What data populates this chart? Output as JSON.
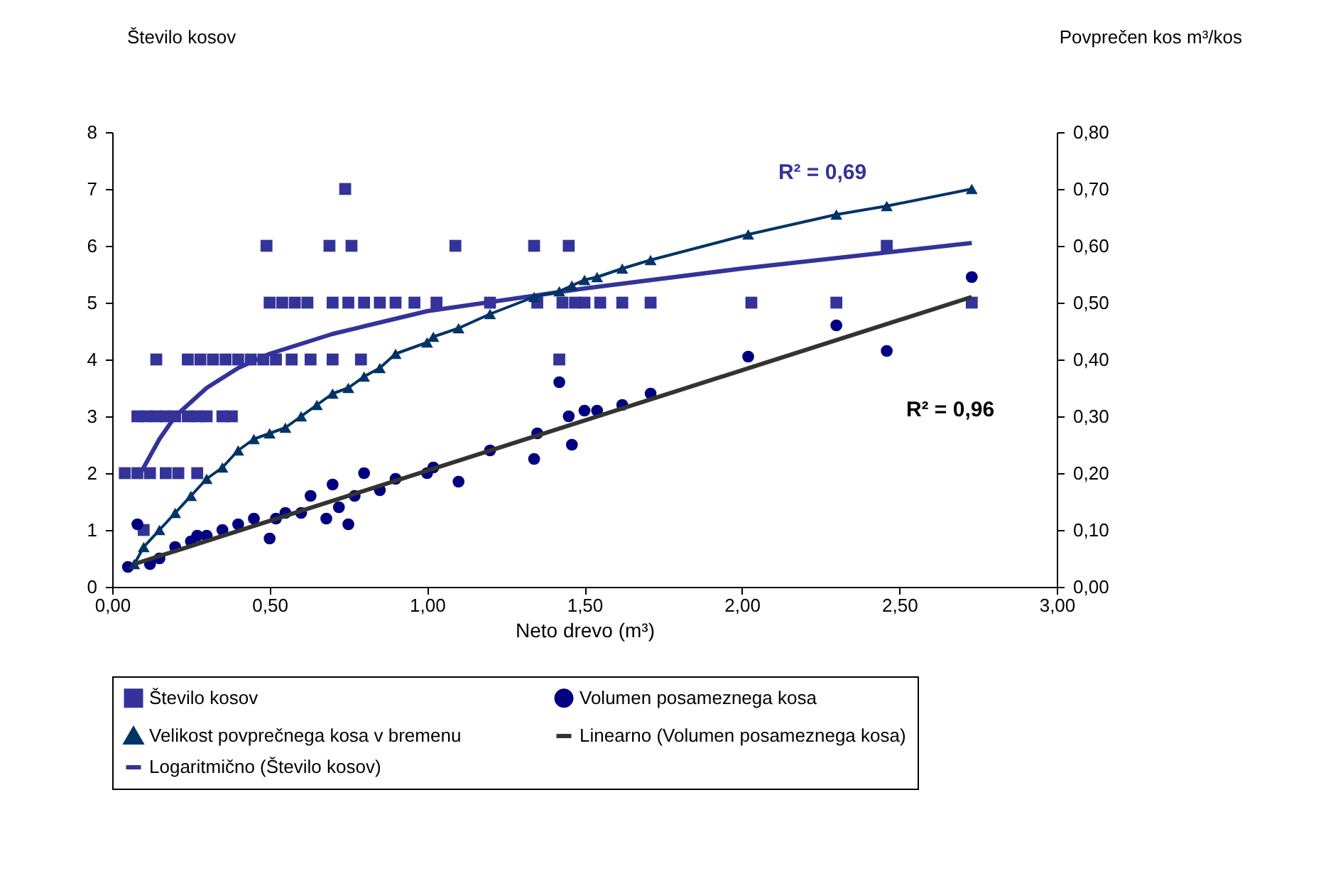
{
  "chart_data": {
    "type": "scatter",
    "xlabel": "Neto drevo (m³)",
    "ylabel": "Število kosov",
    "y2label": "Povprečen kos m³/kos",
    "xlim": [
      0,
      3
    ],
    "xticks": [
      {
        "value": 0,
        "label": "0,00"
      },
      {
        "value": 0.5,
        "label": "0,50"
      },
      {
        "value": 1,
        "label": "1,00"
      },
      {
        "value": 1.5,
        "label": "1,50"
      },
      {
        "value": 2,
        "label": "2,00"
      },
      {
        "value": 2.5,
        "label": "2,50"
      },
      {
        "value": 3,
        "label": "3,00"
      }
    ],
    "ylim": [
      0,
      8
    ],
    "yticks": [
      0,
      1,
      2,
      3,
      4,
      5,
      6,
      7,
      8
    ],
    "y2lim": [
      0,
      0.8
    ],
    "y2ticks": [
      {
        "value": 0,
        "label": "0,00"
      },
      {
        "value": 0.1,
        "label": "0,10"
      },
      {
        "value": 0.2,
        "label": "0,20"
      },
      {
        "value": 0.3,
        "label": "0,30"
      },
      {
        "value": 0.4,
        "label": "0,40"
      },
      {
        "value": 0.5,
        "label": "0,50"
      },
      {
        "value": 0.6,
        "label": "0,60"
      },
      {
        "value": 0.7,
        "label": "0,70"
      },
      {
        "value": 0.8,
        "label": "0,80"
      }
    ],
    "grid": false,
    "legend": "bottom",
    "annotations": [
      "R² = 0,69",
      "R² = 0,96"
    ],
    "series": [
      {
        "name": "Število kosov",
        "marker": "square",
        "color": "#333399",
        "x": [
          0.04,
          0.08,
          0.12,
          0.17,
          0.21,
          0.27,
          0.1,
          0.08,
          0.11,
          0.14,
          0.17,
          0.2,
          0.24,
          0.27,
          0.3,
          0.35,
          0.38,
          0.14,
          0.24,
          0.28,
          0.32,
          0.36,
          0.4,
          0.44,
          0.48,
          0.52,
          0.57,
          0.63,
          0.7,
          0.79,
          1.42,
          0.5,
          0.54,
          0.58,
          0.62,
          0.7,
          0.75,
          0.8,
          0.85,
          0.9,
          0.96,
          1.03,
          1.2,
          1.35,
          1.43,
          1.47,
          1.5,
          1.55,
          1.62,
          1.71,
          2.03,
          2.3,
          2.73,
          0.49,
          0.69,
          0.76,
          1.09,
          1.34,
          1.45,
          2.46,
          0.74
        ],
        "values": [
          2,
          2,
          2,
          2,
          2,
          2,
          1,
          3,
          3,
          3,
          3,
          3,
          3,
          3,
          3,
          3,
          3,
          4,
          4,
          4,
          4,
          4,
          4,
          4,
          4,
          4,
          4,
          4,
          4,
          4,
          4,
          5,
          5,
          5,
          5,
          5,
          5,
          5,
          5,
          5,
          5,
          5,
          5,
          5,
          5,
          5,
          5,
          5,
          5,
          5,
          5,
          5,
          5,
          6,
          6,
          6,
          6,
          6,
          6,
          6,
          7
        ]
      },
      {
        "name": "Volumen posameznega kosa",
        "marker": "circle",
        "axis": "y2",
        "color": "#000080",
        "x": [
          0.05,
          0.08,
          0.12,
          0.15,
          0.2,
          0.25,
          0.27,
          0.3,
          0.35,
          0.4,
          0.45,
          0.5,
          0.52,
          0.55,
          0.6,
          0.63,
          0.68,
          0.7,
          0.72,
          0.75,
          0.77,
          0.8,
          0.85,
          0.9,
          1.0,
          1.02,
          1.1,
          1.2,
          1.34,
          1.35,
          1.42,
          1.45,
          1.46,
          1.5,
          1.54,
          1.62,
          1.71,
          2.02,
          2.3,
          2.46,
          2.73
        ],
        "values": [
          0.035,
          0.11,
          0.04,
          0.05,
          0.07,
          0.08,
          0.09,
          0.09,
          0.1,
          0.11,
          0.12,
          0.085,
          0.12,
          0.13,
          0.13,
          0.16,
          0.12,
          0.18,
          0.14,
          0.11,
          0.16,
          0.2,
          0.17,
          0.19,
          0.2,
          0.21,
          0.185,
          0.24,
          0.225,
          0.27,
          0.36,
          0.3,
          0.25,
          0.31,
          0.31,
          0.32,
          0.34,
          0.405,
          0.46,
          0.415,
          0.545
        ]
      },
      {
        "name": "Velikost povprečnega kosa v bremenu",
        "type": "line",
        "marker": "triangle",
        "axis": "y2",
        "color": "#003366",
        "x": [
          0.07,
          0.1,
          0.15,
          0.2,
          0.25,
          0.3,
          0.35,
          0.4,
          0.45,
          0.5,
          0.55,
          0.6,
          0.65,
          0.7,
          0.75,
          0.8,
          0.85,
          0.9,
          1.0,
          1.02,
          1.1,
          1.2,
          1.34,
          1.42,
          1.46,
          1.5,
          1.54,
          1.62,
          1.71,
          2.02,
          2.3,
          2.46,
          2.73
        ],
        "values": [
          0.04,
          0.07,
          0.1,
          0.13,
          0.16,
          0.19,
          0.21,
          0.24,
          0.26,
          0.27,
          0.28,
          0.3,
          0.32,
          0.34,
          0.35,
          0.37,
          0.385,
          0.41,
          0.43,
          0.44,
          0.455,
          0.48,
          0.51,
          0.52,
          0.53,
          0.54,
          0.545,
          0.56,
          0.575,
          0.62,
          0.655,
          0.67,
          0.7
        ]
      },
      {
        "name": "Linearno (Volumen posameznega kosa)",
        "type": "line",
        "marker": "none",
        "axis": "y2",
        "color": "#333333",
        "x": [
          0.07,
          2.73
        ],
        "values": [
          0.04,
          0.51
        ]
      },
      {
        "name": "Logaritmično (Število kosov)",
        "type": "line",
        "marker": "none",
        "color": "#333399",
        "x": [
          0.09,
          0.12,
          0.15,
          0.2,
          0.3,
          0.4,
          0.5,
          0.7,
          1.0,
          1.5,
          2.0,
          2.73
        ],
        "values": [
          2.0,
          2.3,
          2.6,
          3.0,
          3.5,
          3.85,
          4.1,
          4.45,
          4.85,
          5.25,
          5.6,
          6.05
        ]
      }
    ]
  }
}
